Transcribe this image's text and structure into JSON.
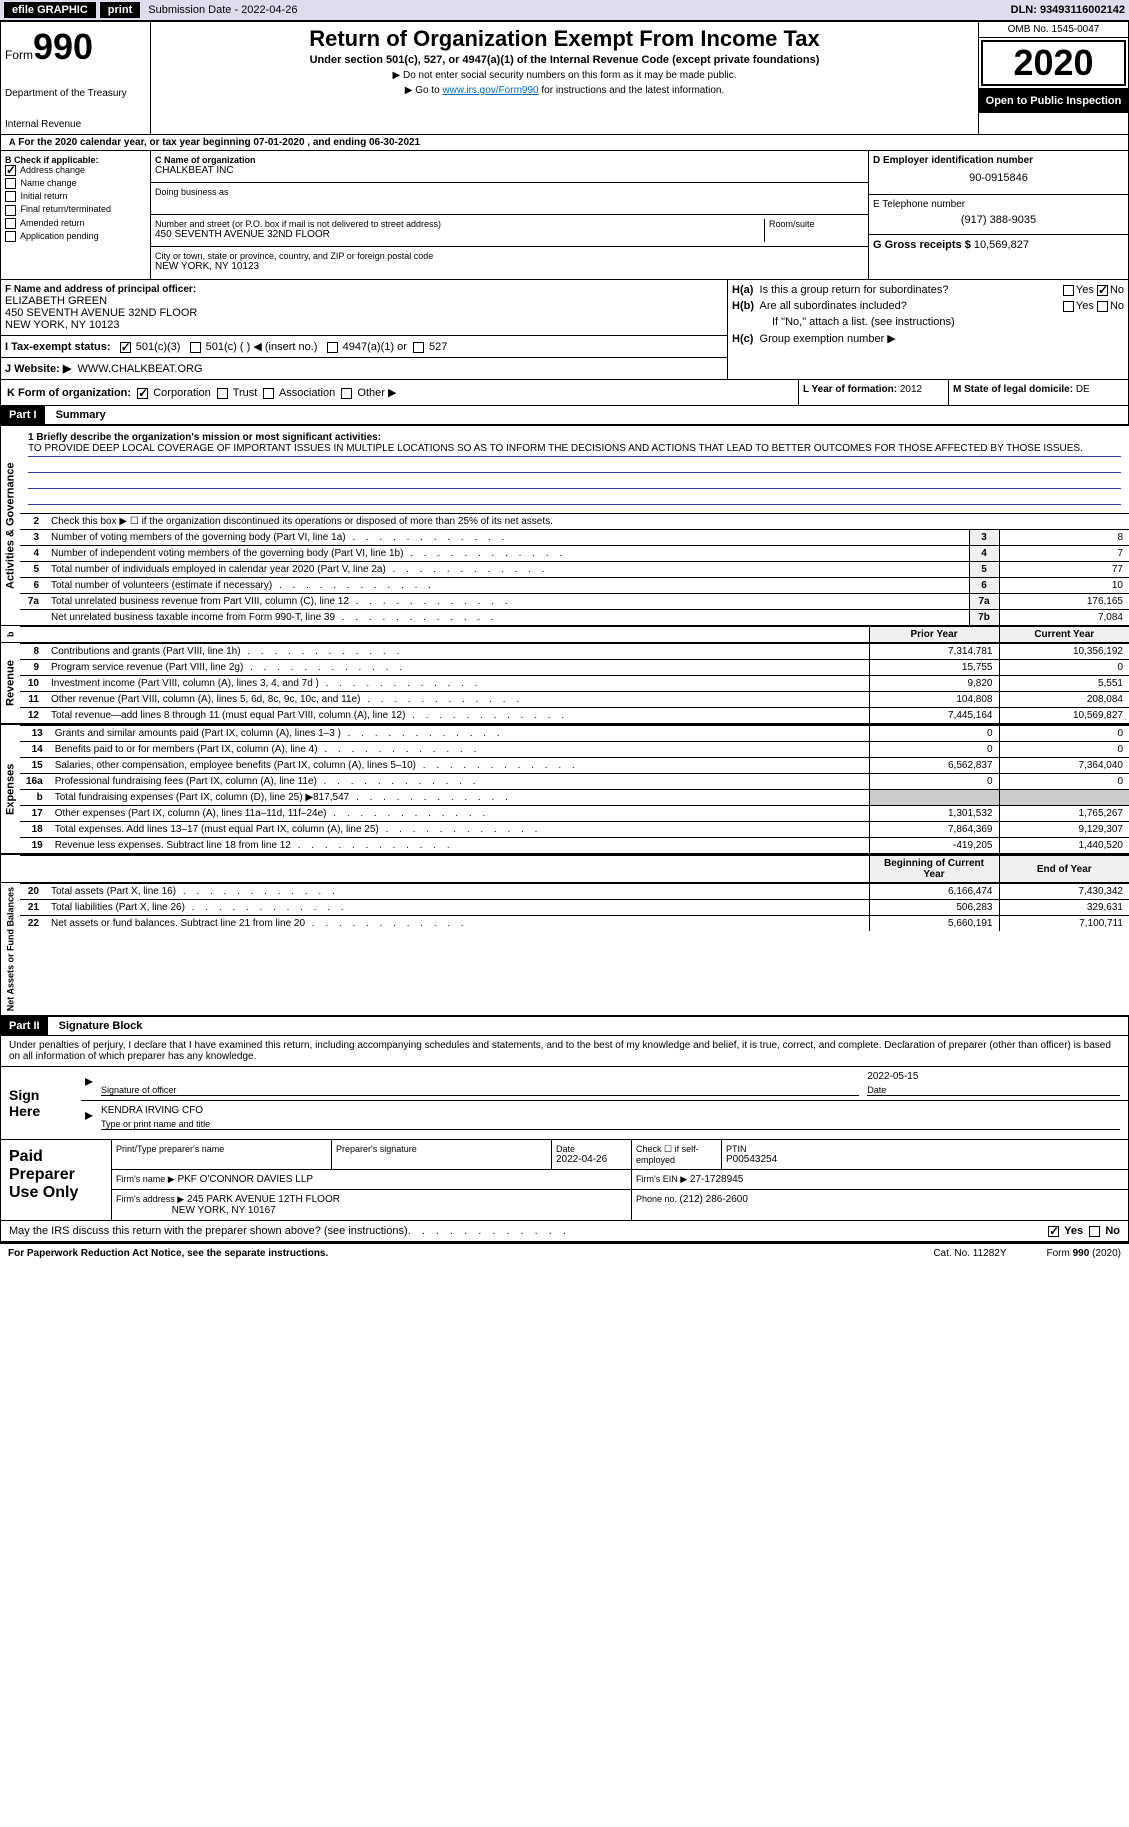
{
  "topbar": {
    "efile": "efile GRAPHIC",
    "print": "print",
    "sub_date_label": "Submission Date - 2022-04-26",
    "dln": "DLN: 93493116002142"
  },
  "header": {
    "form_word": "Form",
    "form_num": "990",
    "dept": "Department of the Treasury",
    "irs": "Internal Revenue",
    "title": "Return of Organization Exempt From Income Tax",
    "subtitle": "Under section 501(c), 527, or 4947(a)(1) of the Internal Revenue Code (except private foundations)",
    "arrow1": "▶ Do not enter social security numbers on this form as it may be made public.",
    "arrow2_pre": "▶ Go to ",
    "arrow2_link": "www.irs.gov/Form990",
    "arrow2_post": " for instructions and the latest information.",
    "omb": "OMB No. 1545-0047",
    "year": "2020",
    "open_pub": "Open to Public Inspection"
  },
  "period": {
    "text": "For the 2020 calendar year, or tax year beginning 07-01-2020   , and ending 06-30-2021"
  },
  "colB": {
    "label": "B Check if applicable:",
    "items": [
      "Address change",
      "Name change",
      "Initial return",
      "Final return/terminated",
      "Amended return",
      "Application pending"
    ],
    "checked": [
      true,
      false,
      false,
      false,
      false,
      false
    ]
  },
  "colC": {
    "name_label": "C Name of organization",
    "name": "CHALKBEAT INC",
    "dba_label": "Doing business as",
    "addr_label": "Number and street (or P.O. box if mail is not delivered to street address)",
    "addr": "450 SEVENTH AVENUE 32ND FLOOR",
    "room_label": "Room/suite",
    "city_label": "City or town, state or province, country, and ZIP or foreign postal code",
    "city": "NEW YORK, NY  10123"
  },
  "colD": {
    "ein_label": "D Employer identification number",
    "ein": "90-0915846",
    "phone_label": "E Telephone number",
    "phone": "(917) 388-9035",
    "gross_label": "G Gross receipts $ ",
    "gross": "10,569,827"
  },
  "sectionF": {
    "label": "F Name and address of principal officer:",
    "name": "ELIZABETH GREEN",
    "addr1": "450 SEVENTH AVENUE 32ND FLOOR",
    "addr2": "NEW YORK, NY  10123"
  },
  "sectionH": {
    "ha": "Is this a group return for subordinates?",
    "hb": "Are all subordinates included?",
    "hb_note": "If \"No,\" attach a list. (see instructions)",
    "hc": "Group exemption number ▶",
    "yes": "Yes",
    "no": "No"
  },
  "sectionI": {
    "label": "I    Tax-exempt status:",
    "opts": [
      "501(c)(3)",
      "501(c) (  ) ◀ (insert no.)",
      "4947(a)(1) or",
      "527"
    ]
  },
  "sectionJ": {
    "label": "J    Website: ▶",
    "val": "WWW.CHALKBEAT.ORG"
  },
  "sectionK": {
    "label": "K Form of organization:",
    "opts": [
      "Corporation",
      "Trust",
      "Association",
      "Other ▶"
    ],
    "year_label": "L Year of formation: ",
    "year": "2012",
    "state_label": "M State of legal domicile: ",
    "state": "DE"
  },
  "part1": {
    "header": "Part I",
    "title": "Summary",
    "mission_label": "1  Briefly describe the organization's mission or most significant activities:",
    "mission": "TO PROVIDE DEEP LOCAL COVERAGE OF IMPORTANT ISSUES IN MULTIPLE LOCATIONS SO AS TO INFORM THE DECISIONS AND ACTIONS THAT LEAD TO BETTER OUTCOMES FOR THOSE AFFECTED BY THOSE ISSUES.",
    "line2": "Check this box ▶ ☐  if the organization discontinued its operations or disposed of more than 25% of its net assets.",
    "side_gov": "Activities & Governance",
    "side_rev": "Revenue",
    "side_exp": "Expenses",
    "side_net": "Net Assets or Fund Balances",
    "col_prior": "Prior Year",
    "col_current": "Current Year",
    "col_boy": "Beginning of Current Year",
    "col_eoy": "End of Year",
    "gov_rows": [
      {
        "n": "3",
        "desc": "Number of voting members of the governing body (Part VI, line 1a)",
        "box": "3",
        "val": "8"
      },
      {
        "n": "4",
        "desc": "Number of independent voting members of the governing body (Part VI, line 1b)",
        "box": "4",
        "val": "7"
      },
      {
        "n": "5",
        "desc": "Total number of individuals employed in calendar year 2020 (Part V, line 2a)",
        "box": "5",
        "val": "77"
      },
      {
        "n": "6",
        "desc": "Total number of volunteers (estimate if necessary)",
        "box": "6",
        "val": "10"
      },
      {
        "n": "7a",
        "desc": "Total unrelated business revenue from Part VIII, column (C), line 12",
        "box": "7a",
        "val": "176,165"
      },
      {
        "n": "",
        "desc": "Net unrelated business taxable income from Form 990-T, line 39",
        "box": "7b",
        "val": "7,084"
      }
    ],
    "rev_rows": [
      {
        "n": "8",
        "desc": "Contributions and grants (Part VIII, line 1h)",
        "prior": "7,314,781",
        "cur": "10,356,192"
      },
      {
        "n": "9",
        "desc": "Program service revenue (Part VIII, line 2g)",
        "prior": "15,755",
        "cur": "0"
      },
      {
        "n": "10",
        "desc": "Investment income (Part VIII, column (A), lines 3, 4, and 7d )",
        "prior": "9,820",
        "cur": "5,551"
      },
      {
        "n": "11",
        "desc": "Other revenue (Part VIII, column (A), lines 5, 6d, 8c, 9c, 10c, and 11e)",
        "prior": "104,808",
        "cur": "208,084"
      },
      {
        "n": "12",
        "desc": "Total revenue—add lines 8 through 11 (must equal Part VIII, column (A), line 12)",
        "prior": "7,445,164",
        "cur": "10,569,827"
      }
    ],
    "exp_rows": [
      {
        "n": "13",
        "desc": "Grants and similar amounts paid (Part IX, column (A), lines 1–3 )",
        "prior": "0",
        "cur": "0"
      },
      {
        "n": "14",
        "desc": "Benefits paid to or for members (Part IX, column (A), line 4)",
        "prior": "0",
        "cur": "0"
      },
      {
        "n": "15",
        "desc": "Salaries, other compensation, employee benefits (Part IX, column (A), lines 5–10)",
        "prior": "6,562,837",
        "cur": "7,364,040"
      },
      {
        "n": "16a",
        "desc": "Professional fundraising fees (Part IX, column (A), line 11e)",
        "prior": "0",
        "cur": "0"
      },
      {
        "n": "b",
        "desc": "Total fundraising expenses (Part IX, column (D), line 25) ▶817,547",
        "prior": "",
        "cur": "",
        "grey": true
      },
      {
        "n": "17",
        "desc": "Other expenses (Part IX, column (A), lines 11a–11d, 11f–24e)",
        "prior": "1,301,532",
        "cur": "1,765,267"
      },
      {
        "n": "18",
        "desc": "Total expenses. Add lines 13–17 (must equal Part IX, column (A), line 25)",
        "prior": "7,864,369",
        "cur": "9,129,307"
      },
      {
        "n": "19",
        "desc": "Revenue less expenses. Subtract line 18 from line 12",
        "prior": "-419,205",
        "cur": "1,440,520"
      }
    ],
    "net_rows": [
      {
        "n": "20",
        "desc": "Total assets (Part X, line 16)",
        "prior": "6,166,474",
        "cur": "7,430,342"
      },
      {
        "n": "21",
        "desc": "Total liabilities (Part X, line 26)",
        "prior": "506,283",
        "cur": "329,631"
      },
      {
        "n": "22",
        "desc": "Net assets or fund balances. Subtract line 21 from line 20",
        "prior": "5,660,191",
        "cur": "7,100,711"
      }
    ]
  },
  "part2": {
    "header": "Part II",
    "title": "Signature Block",
    "declaration": "Under penalties of perjury, I declare that I have examined this return, including accompanying schedules and statements, and to the best of my knowledge and belief, it is true, correct, and complete. Declaration of preparer (other than officer) is based on all information of which preparer has any knowledge.",
    "sign_here": "Sign Here",
    "sig_officer": "Signature of officer",
    "date_label": "Date",
    "sig_date": "2022-05-15",
    "officer_name": "KENDRA IRVING  CFO",
    "type_name": "Type or print name and title",
    "paid_prep": "Paid Preparer Use Only",
    "prep_name_label": "Print/Type preparer's name",
    "prep_sig_label": "Preparer's signature",
    "prep_date_label": "Date",
    "prep_date": "2022-04-26",
    "check_if": "Check ☐ if self-employed",
    "ptin_label": "PTIN",
    "ptin": "P00543254",
    "firm_name_label": "Firm's name    ▶",
    "firm_name": "PKF O'CONNOR DAVIES LLP",
    "firm_ein_label": "Firm's EIN ▶",
    "firm_ein": "27-1728945",
    "firm_addr_label": "Firm's address ▶",
    "firm_addr1": "245 PARK AVENUE 12TH FLOOR",
    "firm_addr2": "NEW YORK, NY  10167",
    "phone_label": "Phone no. ",
    "phone": "(212) 286-2600",
    "discuss": "May the IRS discuss this return with the preparer shown above? (see instructions)"
  },
  "footer": {
    "paperwork": "For Paperwork Reduction Act Notice, see the separate instructions.",
    "cat": "Cat. No. 11282Y",
    "form": "Form 990 (2020)"
  }
}
